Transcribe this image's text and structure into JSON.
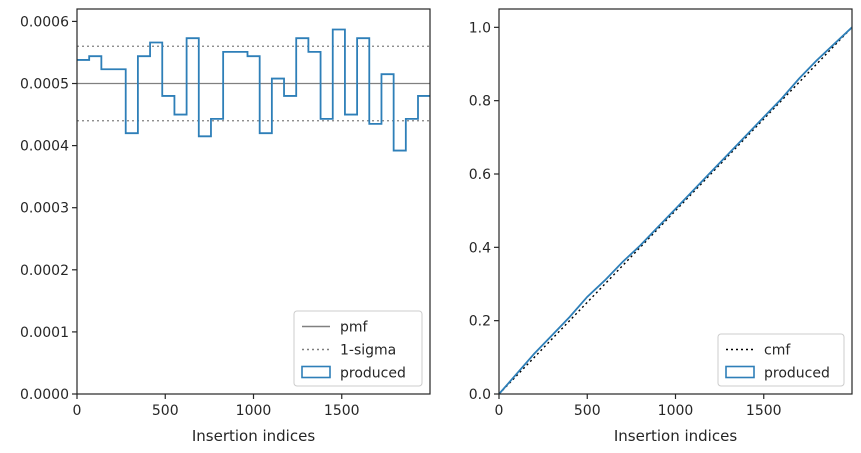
{
  "chart_data": [
    {
      "type": "line",
      "xlabel": "Insertion indices",
      "ylabel": "",
      "xlim": [
        0,
        2000
      ],
      "ylim": [
        0,
        0.00062
      ],
      "xticks": [
        0,
        500,
        1000,
        1500
      ],
      "xtick_labels": [
        "0",
        "500",
        "1000",
        "1500"
      ],
      "yticks": [
        0,
        0.0001,
        0.0002,
        0.0003,
        0.0004,
        0.0005,
        0.0006
      ],
      "ytick_labels": [
        "0.0000",
        "0.0001",
        "0.0002",
        "0.0003",
        "0.0004",
        "0.0005",
        "0.0006"
      ],
      "legend_position": "lower right",
      "legend": [
        "pmf",
        "1-sigma",
        "produced"
      ],
      "reference_lines": [
        {
          "name": "pmf",
          "y": 0.0005,
          "style": "solid",
          "color": "#808080"
        },
        {
          "name": "1-sigma",
          "y": 0.00056,
          "style": "dotted",
          "color": "#808080"
        },
        {
          "name": "1-sigma",
          "y": 0.00044,
          "style": "dotted",
          "color": "#808080"
        }
      ],
      "series": [
        {
          "name": "produced",
          "style": "step",
          "color": "#2e7fb8",
          "bin_width": 69,
          "x": [
            0,
            69,
            138,
            207,
            276,
            345,
            414,
            483,
            552,
            621,
            690,
            759,
            828,
            897,
            966,
            1035,
            1104,
            1173,
            1242,
            1311,
            1380,
            1449,
            1518,
            1587,
            1656,
            1725,
            1794,
            1863,
            1932
          ],
          "values": [
            0.000538,
            0.000544,
            0.000523,
            0.000523,
            0.00042,
            0.000544,
            0.000566,
            0.00048,
            0.00045,
            0.000573,
            0.000415,
            0.000443,
            0.000551,
            0.000551,
            0.000544,
            0.00042,
            0.000508,
            0.00048,
            0.000573,
            0.000551,
            0.000443,
            0.000587,
            0.00045,
            0.000573,
            0.000435,
            0.000515,
            0.000392,
            0.000443,
            0.00048
          ]
        }
      ]
    },
    {
      "type": "line",
      "xlabel": "Insertion indices",
      "ylabel": "",
      "xlim": [
        0,
        2000
      ],
      "ylim": [
        0,
        1.05
      ],
      "xticks": [
        0,
        500,
        1000,
        1500
      ],
      "xtick_labels": [
        "0",
        "500",
        "1000",
        "1500"
      ],
      "yticks": [
        0,
        0.2,
        0.4,
        0.6,
        0.8,
        1.0
      ],
      "ytick_labels": [
        "0.0",
        "0.2",
        "0.4",
        "0.6",
        "0.8",
        "1.0"
      ],
      "legend_position": "lower right",
      "legend": [
        "cmf",
        "produced"
      ],
      "series": [
        {
          "name": "cmf",
          "style": "dotted",
          "color": "#000000",
          "x": [
            0,
            2000
          ],
          "values": [
            0,
            1.0
          ]
        },
        {
          "name": "produced",
          "style": "solid",
          "color": "#2e7fb8",
          "x": [
            0,
            100,
            200,
            300,
            400,
            500,
            600,
            700,
            800,
            900,
            1000,
            1100,
            1200,
            1300,
            1400,
            1500,
            1600,
            1700,
            1800,
            1900,
            2000
          ],
          "values": [
            0,
            0.055,
            0.11,
            0.16,
            0.21,
            0.265,
            0.31,
            0.36,
            0.405,
            0.455,
            0.505,
            0.555,
            0.605,
            0.655,
            0.705,
            0.755,
            0.805,
            0.86,
            0.91,
            0.955,
            1.0
          ]
        }
      ]
    }
  ]
}
